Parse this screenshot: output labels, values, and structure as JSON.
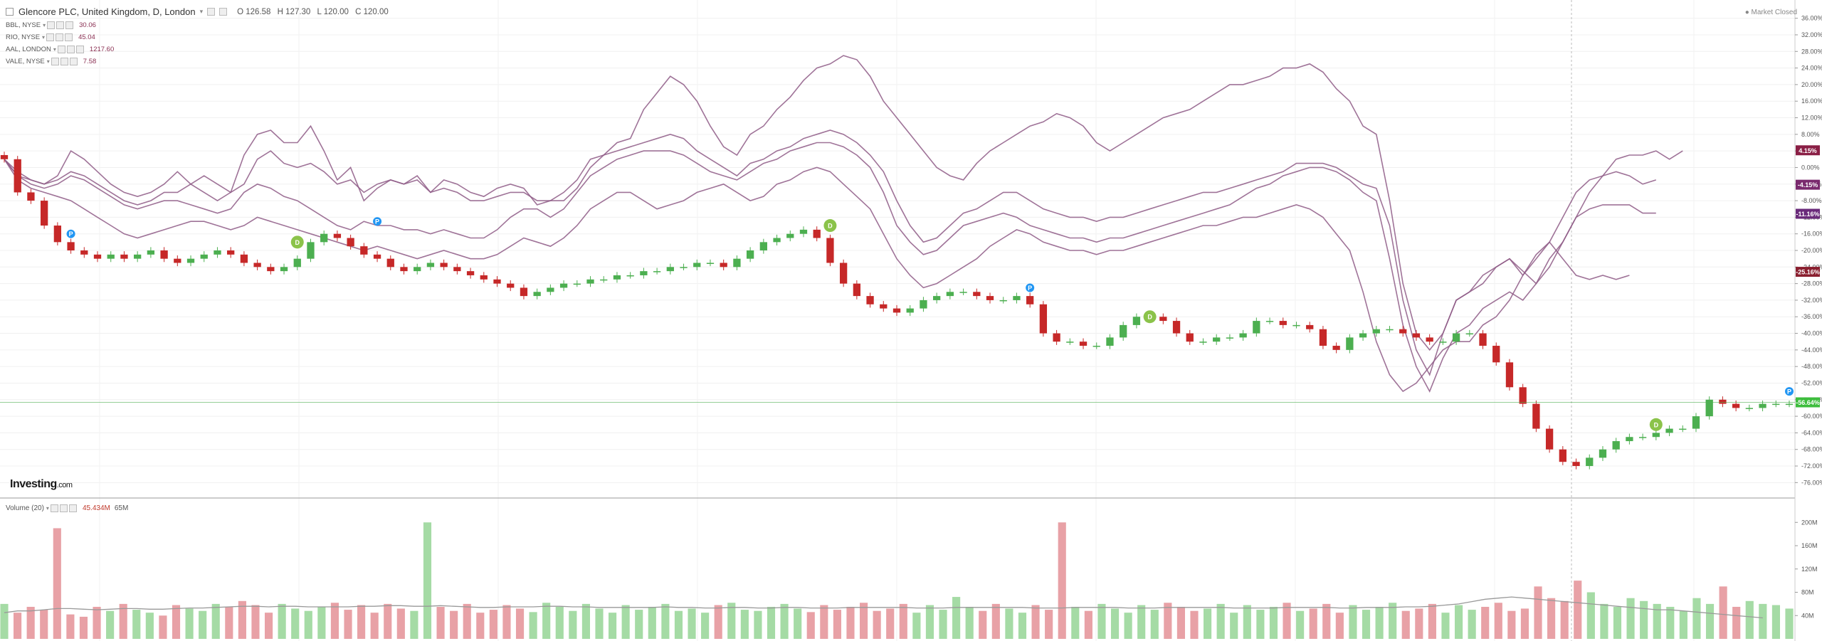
{
  "header": {
    "title": "Glencore PLC, United Kingdom, D, London",
    "ohlc": {
      "open": "O 126.58",
      "high": "H 127.30",
      "low": "L 120.00",
      "close": "C 120.00"
    },
    "market_status": "Market Closed"
  },
  "comparisons": [
    {
      "label": "BBL, NYSE",
      "value": "30.06"
    },
    {
      "label": "RIO, NYSE",
      "value": "45.04"
    },
    {
      "label": "AAL, LONDON",
      "value": "1217.60"
    },
    {
      "label": "VALE, NYSE",
      "value": "7.58"
    }
  ],
  "volume": {
    "label": "Volume (20)",
    "value": "45.434M",
    "ma": "65M"
  },
  "logo": {
    "main": "Investing",
    "suffix": ".com"
  },
  "colors": {
    "up": "#4caf50",
    "down": "#c62828",
    "compare": "#8e5a86",
    "vol_up": "#a5dba5",
    "vol_down": "#e8a1a6",
    "badge_green": "#8bc34a",
    "badge_blue": "#2196f3"
  },
  "chart_data": {
    "type": "line",
    "ylabel": "",
    "y_axis_ticks": [
      "36.00%",
      "32.00%",
      "28.00%",
      "24.00%",
      "20.00%",
      "16.00%",
      "12.00%",
      "8.00%",
      "4.00%",
      "0.00%",
      "-4.00%",
      "-8.00%",
      "-12.00%",
      "-16.00%",
      "-20.00%",
      "-24.00%",
      "-28.00%",
      "-32.00%",
      "-36.00%",
      "-40.00%",
      "-44.00%",
      "-48.00%",
      "-52.00%",
      "-56.00%",
      "-60.00%",
      "-64.00%",
      "-68.00%",
      "-72.00%",
      "-76.00%"
    ],
    "ylim": [
      -78,
      38
    ],
    "end_labels": [
      {
        "text": "4.15%",
        "value": 4.15,
        "color": "#8a1f45"
      },
      {
        "text": "-4.15%",
        "value": -4.15,
        "color": "#7a2a6e"
      },
      {
        "text": "-11.16%",
        "value": -11.16,
        "color": "#6a2a7a"
      },
      {
        "text": "-25.16%",
        "value": -25.16,
        "color": "#8a1f2f"
      },
      {
        "text": "-56.64%",
        "value": -56.64,
        "color": "#3dbd3d"
      }
    ],
    "series": [
      {
        "name": "Glencore PLC",
        "style": "candles",
        "values": [
          2,
          -6,
          -8,
          -14,
          -18,
          -20,
          -21,
          -22,
          -21,
          -22,
          -21,
          -20,
          -22,
          -23,
          -22,
          -21,
          -20,
          -21,
          -23,
          -24,
          -25,
          -24,
          -22,
          -18,
          -16,
          -17,
          -19,
          -21,
          -22,
          -24,
          -25,
          -24,
          -23,
          -24,
          -25,
          -26,
          -27,
          -28,
          -29,
          -31,
          -30,
          -29,
          -28,
          -28,
          -27,
          -27,
          -26,
          -26,
          -25,
          -25,
          -24,
          -24,
          -23,
          -23,
          -24,
          -22,
          -20,
          -18,
          -17,
          -16,
          -15,
          -17,
          -23,
          -28,
          -31,
          -33,
          -34,
          -35,
          -34,
          -32,
          -31,
          -30,
          -30,
          -31,
          -32,
          -32,
          -31,
          -33,
          -40,
          -42,
          -42,
          -43,
          -43,
          -41,
          -38,
          -36,
          -36,
          -37,
          -40,
          -42,
          -42,
          -41,
          -41,
          -40,
          -37,
          -37,
          -38,
          -38,
          -39,
          -43,
          -44,
          -41,
          -40,
          -39,
          -39,
          -40,
          -41,
          -42,
          -42,
          -40,
          -40,
          -43,
          -47,
          -53,
          -57,
          -63,
          -68,
          -71,
          -72,
          -70,
          -68,
          -66,
          -65,
          -65,
          -64,
          -63,
          -63,
          -60,
          -56,
          -57,
          -58,
          -58,
          -57,
          -57,
          -57
        ]
      },
      {
        "name": "BBL, NYSE",
        "style": "line",
        "values": [
          2,
          -2,
          -3,
          -4,
          -2,
          4,
          2,
          -1,
          -4,
          -6,
          -7,
          -6,
          -4,
          -1,
          -4,
          -6,
          -8,
          -6,
          3,
          8,
          9,
          6,
          6,
          10,
          4,
          -3,
          0,
          -8,
          -5,
          -3,
          -4,
          -2,
          -6,
          -3,
          -4,
          -6,
          -7,
          -5,
          -4,
          -5,
          -9,
          -8,
          -8,
          -5,
          0,
          3,
          6,
          7,
          14,
          18,
          22,
          20,
          16,
          10,
          5,
          3,
          8,
          10,
          14,
          17,
          21,
          24,
          25,
          27,
          26,
          22,
          16,
          12,
          8,
          4,
          0,
          -2,
          -3,
          1,
          4,
          6,
          8,
          10,
          11,
          13,
          12,
          10,
          6,
          4,
          6,
          8,
          10,
          12,
          13,
          14,
          16,
          18,
          20,
          20,
          21,
          22,
          24,
          24,
          25,
          23,
          19,
          16,
          10,
          8,
          -8,
          -28,
          -40,
          -44,
          -40,
          -32,
          -30,
          -28,
          -24,
          -22,
          -25,
          -28,
          -22,
          -18,
          -12,
          -6,
          -2,
          2,
          3,
          3,
          4,
          2,
          4
        ]
      },
      {
        "name": "RIO, NYSE",
        "style": "line",
        "values": [
          2,
          -1,
          -3,
          -4,
          -3,
          -1,
          -2,
          -4,
          -6,
          -8,
          -9,
          -8,
          -6,
          -6,
          -4,
          -2,
          -4,
          -6,
          -4,
          2,
          4,
          1,
          0,
          1,
          -1,
          -4,
          -3,
          -6,
          -4,
          -3,
          -4,
          -3,
          -6,
          -5,
          -6,
          -8,
          -8,
          -7,
          -6,
          -6,
          -8,
          -8,
          -6,
          -3,
          2,
          3,
          4,
          5,
          6,
          7,
          8,
          7,
          4,
          2,
          0,
          -2,
          1,
          2,
          4,
          5,
          7,
          8,
          9,
          8,
          6,
          3,
          -1,
          -8,
          -14,
          -18,
          -17,
          -14,
          -11,
          -10,
          -8,
          -6,
          -6,
          -8,
          -10,
          -11,
          -12,
          -12,
          -13,
          -12,
          -12,
          -11,
          -10,
          -9,
          -8,
          -7,
          -6,
          -6,
          -5,
          -4,
          -3,
          -2,
          -1,
          1,
          1,
          1,
          0,
          -2,
          -4,
          -5,
          -14,
          -32,
          -44,
          -50,
          -40,
          -32,
          -30,
          -26,
          -24,
          -22,
          -26,
          -22,
          -18,
          -12,
          -6,
          -3,
          -2,
          -1,
          -2,
          -4,
          -3
        ]
      },
      {
        "name": "AAL, LONDON",
        "style": "line",
        "values": [
          2,
          -2,
          -4,
          -5,
          -4,
          -2,
          -3,
          -5,
          -7,
          -9,
          -10,
          -9,
          -8,
          -8,
          -9,
          -10,
          -11,
          -10,
          -6,
          -4,
          -5,
          -7,
          -8,
          -10,
          -12,
          -14,
          -15,
          -13,
          -14,
          -14,
          -15,
          -15,
          -16,
          -15,
          -16,
          -17,
          -17,
          -15,
          -12,
          -10,
          -10,
          -12,
          -10,
          -6,
          -2,
          0,
          2,
          3,
          4,
          4,
          4,
          3,
          1,
          -1,
          -2,
          -3,
          -1,
          1,
          2,
          4,
          5,
          6,
          6,
          5,
          3,
          0,
          -6,
          -14,
          -18,
          -21,
          -20,
          -17,
          -14,
          -13,
          -12,
          -11,
          -12,
          -14,
          -15,
          -16,
          -17,
          -17,
          -18,
          -17,
          -17,
          -16,
          -15,
          -14,
          -13,
          -12,
          -11,
          -10,
          -9,
          -7,
          -5,
          -4,
          -2,
          -1,
          0,
          0,
          -1,
          -3,
          -6,
          -8,
          -22,
          -38,
          -48,
          -54,
          -46,
          -40,
          -38,
          -34,
          -32,
          -30,
          -32,
          -28,
          -24,
          -18,
          -12,
          -10,
          -9,
          -9,
          -9,
          -11,
          -11
        ]
      },
      {
        "name": "VALE, NYSE",
        "style": "line",
        "values": [
          2,
          -3,
          -5,
          -6,
          -7,
          -8,
          -10,
          -12,
          -14,
          -16,
          -17,
          -16,
          -15,
          -14,
          -13,
          -13,
          -14,
          -15,
          -14,
          -12,
          -13,
          -14,
          -15,
          -16,
          -17,
          -18,
          -19,
          -20,
          -19,
          -20,
          -21,
          -22,
          -21,
          -20,
          -21,
          -22,
          -22,
          -21,
          -19,
          -17,
          -18,
          -19,
          -17,
          -14,
          -10,
          -8,
          -6,
          -6,
          -8,
          -10,
          -9,
          -8,
          -6,
          -5,
          -4,
          -6,
          -8,
          -7,
          -4,
          -3,
          -1,
          0,
          -1,
          -4,
          -7,
          -10,
          -16,
          -22,
          -26,
          -29,
          -28,
          -26,
          -24,
          -22,
          -19,
          -17,
          -15,
          -16,
          -18,
          -19,
          -20,
          -20,
          -21,
          -20,
          -20,
          -19,
          -18,
          -17,
          -16,
          -15,
          -14,
          -14,
          -13,
          -12,
          -12,
          -11,
          -10,
          -9,
          -10,
          -12,
          -16,
          -20,
          -30,
          -42,
          -50,
          -54,
          -52,
          -48,
          -44,
          -42,
          -42,
          -38,
          -36,
          -32,
          -26,
          -21,
          -18,
          -22,
          -26,
          -27,
          -26,
          -27,
          -26
        ]
      }
    ],
    "badges": [
      {
        "letter": "P",
        "series_index": 5,
        "value": -16,
        "color": "blue"
      },
      {
        "letter": "D",
        "series_index": 22,
        "value": -18,
        "color": "green"
      },
      {
        "letter": "P",
        "series_index": 28,
        "value": -13,
        "color": "blue"
      },
      {
        "letter": "D",
        "series_index": 62,
        "value": -14,
        "color": "green"
      },
      {
        "letter": "P",
        "series_index": 77,
        "value": -29,
        "color": "blue"
      },
      {
        "letter": "D",
        "series_index": 86,
        "value": -36,
        "color": "green"
      },
      {
        "letter": "D",
        "series_index": 124,
        "value": -62,
        "color": "green"
      },
      {
        "letter": "P",
        "series_index": 134,
        "value": -54,
        "color": "blue"
      }
    ],
    "volume": {
      "y_axis_ticks": [
        "200M",
        "160M",
        "120M",
        "80M",
        "40M"
      ],
      "ylim": [
        0,
        215
      ],
      "values": [
        60,
        45,
        55,
        50,
        190,
        42,
        38,
        55,
        48,
        60,
        50,
        45,
        40,
        58,
        52,
        48,
        60,
        55,
        65,
        58,
        45,
        60,
        52,
        48,
        55,
        62,
        50,
        58,
        45,
        60,
        52,
        48,
        200,
        55,
        48,
        60,
        45,
        50,
        58,
        52,
        46,
        62,
        55,
        48,
        60,
        52,
        45,
        58,
        50,
        55,
        60,
        48,
        52,
        45,
        58,
        62,
        50,
        48,
        55,
        60,
        52,
        46,
        58,
        50,
        55,
        62,
        48,
        52,
        60,
        45,
        58,
        50,
        72,
        55,
        48,
        60,
        52,
        45,
        58,
        50,
        200,
        55,
        48,
        60,
        52,
        45,
        58,
        50,
        62,
        55,
        48,
        52,
        60,
        45,
        58,
        50,
        55,
        62,
        48,
        52,
        60,
        45,
        58,
        50,
        55,
        62,
        48,
        52,
        60,
        45,
        58,
        50,
        55,
        62,
        48,
        52,
        90,
        70,
        65,
        100,
        80,
        60,
        55,
        70,
        65,
        60,
        55,
        48,
        70,
        60,
        90,
        55,
        65,
        60,
        58,
        52
      ],
      "ma": [
        45,
        48,
        48,
        50,
        52,
        52,
        51,
        50,
        51,
        52,
        52,
        51,
        51,
        52,
        53,
        53,
        54,
        55,
        56,
        56,
        55,
        56,
        56,
        55,
        55,
        55,
        55,
        56,
        56,
        57,
        57,
        56,
        56,
        57,
        56,
        55,
        54,
        54,
        55,
        55,
        55,
        56,
        56,
        55,
        55,
        54,
        54,
        54,
        54,
        54,
        55,
        54,
        54,
        53,
        53,
        54,
        54,
        53,
        53,
        54,
        54,
        53,
        53,
        53,
        54,
        54,
        54,
        54,
        54,
        53,
        53,
        53,
        54,
        54,
        54,
        54,
        54,
        54,
        53,
        53,
        53,
        54,
        54,
        54,
        54,
        53,
        53,
        53,
        54,
        54,
        54,
        54,
        54,
        53,
        53,
        53,
        53,
        54,
        54,
        54,
        54,
        53,
        53,
        54,
        54,
        54,
        55,
        55,
        56,
        58,
        60,
        64,
        68,
        70,
        72,
        70,
        68,
        66,
        64,
        62,
        60,
        58,
        56,
        54,
        52,
        50,
        50,
        48,
        46,
        44,
        42,
        40,
        38,
        36
      ]
    }
  }
}
